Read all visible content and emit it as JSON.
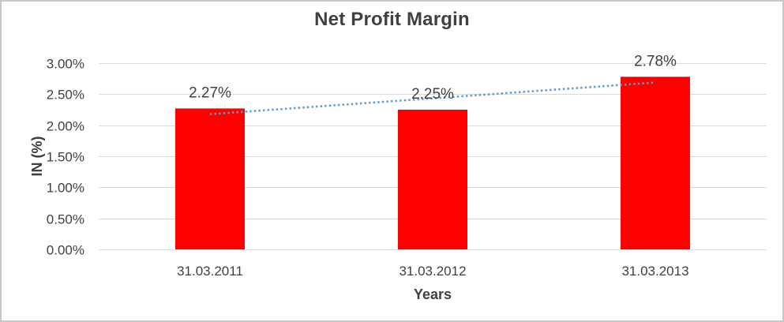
{
  "frame": {
    "background": "#ffffff",
    "border_color": "#c8c8c8"
  },
  "chart_data": {
    "type": "bar",
    "title": "Net Profit Margin",
    "categories": [
      "31.03.2011",
      "31.03.2012",
      "31.03.2013"
    ],
    "series": [
      {
        "name": "Net Profit Margin",
        "values": [
          2.27,
          2.25,
          2.78
        ]
      }
    ],
    "data_labels": [
      "2.27%",
      "2.25%",
      "2.78%"
    ],
    "xlabel": "Years",
    "ylabel": "IN (%)",
    "ylim": [
      0,
      3
    ],
    "ytick_values": [
      0,
      0.5,
      1,
      1.5,
      2,
      2.5,
      3
    ],
    "ytick_labels": [
      "0.00%",
      "0.50%",
      "1.00%",
      "1.50%",
      "2.00%",
      "2.50%",
      "3.00%"
    ],
    "grid": true,
    "legend": false,
    "trendline": {
      "type": "linear",
      "style": "dotted",
      "color": "#5b9bd5"
    },
    "colors": {
      "bar": "#ff0000",
      "trendline": "#5b9bd5",
      "gridline": "#d9d9d9",
      "axis_line": "#d9d9d9",
      "text": "#404040",
      "frame_border": "#c8c8c8"
    }
  }
}
